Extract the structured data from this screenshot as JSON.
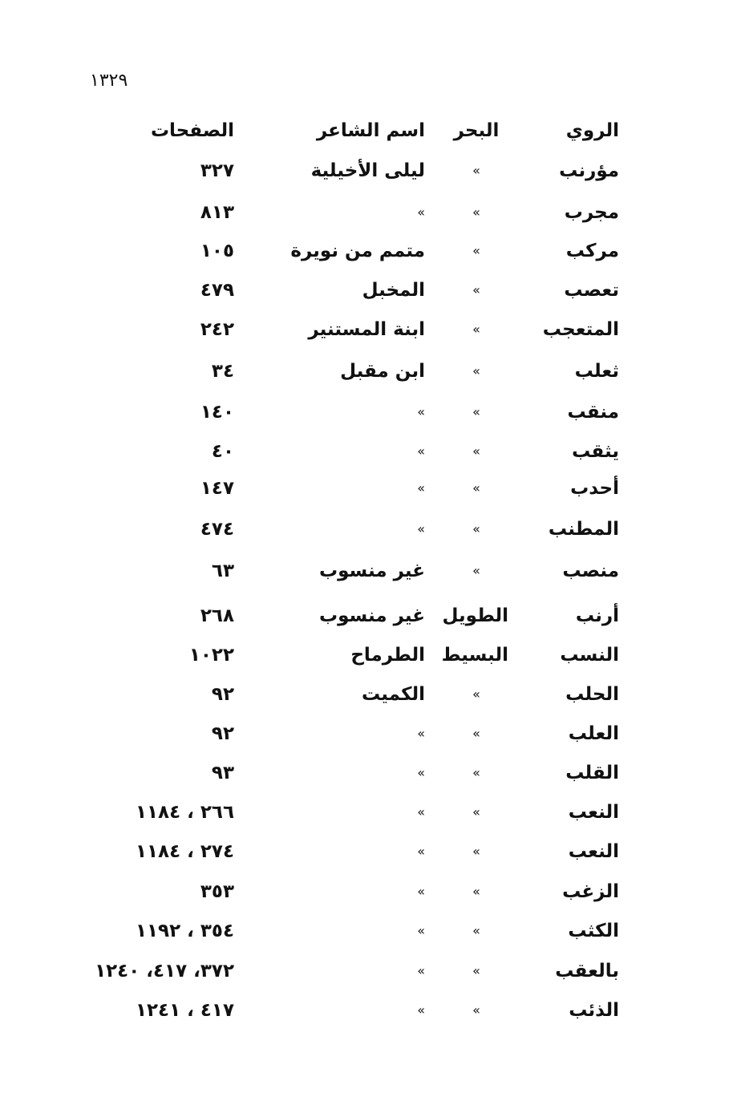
{
  "page_number": "١٣٢٩",
  "table": {
    "headers": {
      "rhyme": "الروي",
      "meter": "البحر",
      "poet": "اسم الشاعر",
      "pages": "الصفحات"
    },
    "rows": [
      {
        "rhyme": "مؤرنب",
        "meter": "»",
        "poet": "ليلى الأخيلية",
        "pages": "٣٢٧"
      },
      {
        "rhyme": "مجرب",
        "meter": "»",
        "poet": "»",
        "pages": "٨١٣"
      },
      {
        "rhyme": "مركب",
        "meter": "»",
        "poet": "متمم من نويرة",
        "pages": "١٠٥"
      },
      {
        "rhyme": "تعصب",
        "meter": "»",
        "poet": "المخبل",
        "pages": "٤٧٩"
      },
      {
        "rhyme": "المتعجب",
        "meter": "»",
        "poet": "ابنة المستنير",
        "pages": "٢٤٢"
      },
      {
        "rhyme": "ثعلب",
        "meter": "»",
        "poet": "ابن مقبل",
        "pages": "٣٤"
      },
      {
        "rhyme": "منقب",
        "meter": "»",
        "poet": "»",
        "pages": "١٤٠"
      },
      {
        "rhyme": "يثقب",
        "meter": "»",
        "poet": "»",
        "pages": "٤٠"
      },
      {
        "rhyme": "أحدب",
        "meter": "»",
        "poet": "»",
        "pages": "١٤٧"
      },
      {
        "rhyme": "المطنب",
        "meter": "»",
        "poet": "»",
        "pages": "٤٧٤"
      },
      {
        "rhyme": "منصب",
        "meter": "»",
        "poet": "غير منسوب",
        "pages": "٦٣"
      },
      {
        "rhyme": "أرنب",
        "meter": "الطويل",
        "poet": "غير منسوب",
        "pages": "٢٦٨"
      },
      {
        "rhyme": "النسب",
        "meter": "البسيط",
        "poet": "الطرماح",
        "pages": "١٠٢٢"
      },
      {
        "rhyme": "الحلب",
        "meter": "»",
        "poet": "الكميت",
        "pages": "٩٢"
      },
      {
        "rhyme": "العلب",
        "meter": "»",
        "poet": "»",
        "pages": "٩٢"
      },
      {
        "rhyme": "القلب",
        "meter": "»",
        "poet": "»",
        "pages": "٩٣"
      },
      {
        "rhyme": "النعب",
        "meter": "»",
        "poet": "»",
        "pages": "٢٦٦ ، ١١٨٤"
      },
      {
        "rhyme": "النعب",
        "meter": "»",
        "poet": "»",
        "pages": "٢٧٤ ، ١١٨٤"
      },
      {
        "rhyme": "الزغب",
        "meter": "»",
        "poet": "»",
        "pages": "٣٥٣"
      },
      {
        "rhyme": "الكثب",
        "meter": "»",
        "poet": "»",
        "pages": "٣٥٤ ، ١١٩٢"
      },
      {
        "rhyme": "بالعقب",
        "meter": "»",
        "poet": "»",
        "pages": "٣٧٢، ٤١٧، ١٢٤٠"
      },
      {
        "rhyme": "الذئب",
        "meter": "»",
        "poet": "»",
        "pages": "٤١٧ ، ١٢٤١"
      }
    ]
  }
}
